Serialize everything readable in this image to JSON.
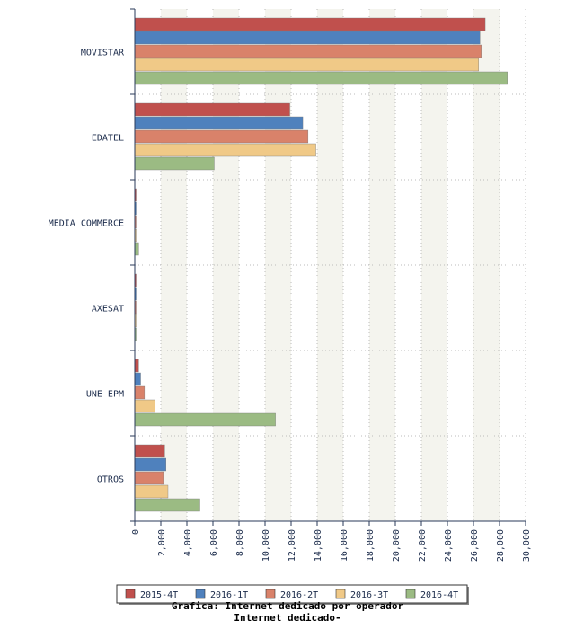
{
  "chart_data": {
    "type": "bar",
    "orientation": "horizontal",
    "title": "Grafica: Internet dedicado por operador",
    "subtitle": "Internet dedicado-",
    "categories": [
      "MOVISTAR",
      "EDATEL",
      "MEDIA COMMERCE",
      "AXESAT",
      "UNE EPM",
      "OTROS"
    ],
    "series": [
      {
        "name": "2015-4T",
        "color": "#c0504d",
        "values": [
          26900,
          11900,
          80,
          80,
          300,
          2300
        ]
      },
      {
        "name": "2016-1T",
        "color": "#4f81bd",
        "values": [
          26500,
          12900,
          80,
          80,
          450,
          2400
        ]
      },
      {
        "name": "2016-2T",
        "color": "#d9826a",
        "values": [
          26600,
          13300,
          80,
          60,
          750,
          2200
        ]
      },
      {
        "name": "2016-3T",
        "color": "#f0c987",
        "values": [
          26400,
          13900,
          80,
          60,
          1550,
          2550
        ]
      },
      {
        "name": "2016-4T",
        "color": "#9bbb83",
        "values": [
          28600,
          6100,
          300,
          60,
          10800,
          5000
        ]
      }
    ],
    "xlim": [
      0,
      30000
    ],
    "xticks": [
      "0",
      "2,000",
      "4,000",
      "6,000",
      "8,000",
      "10,000",
      "12,000",
      "14,000",
      "16,000",
      "18,000",
      "20,000",
      "22,000",
      "24,000",
      "26,000",
      "28,000",
      "30,000"
    ],
    "grid": true,
    "legend_position": "bottom"
  }
}
